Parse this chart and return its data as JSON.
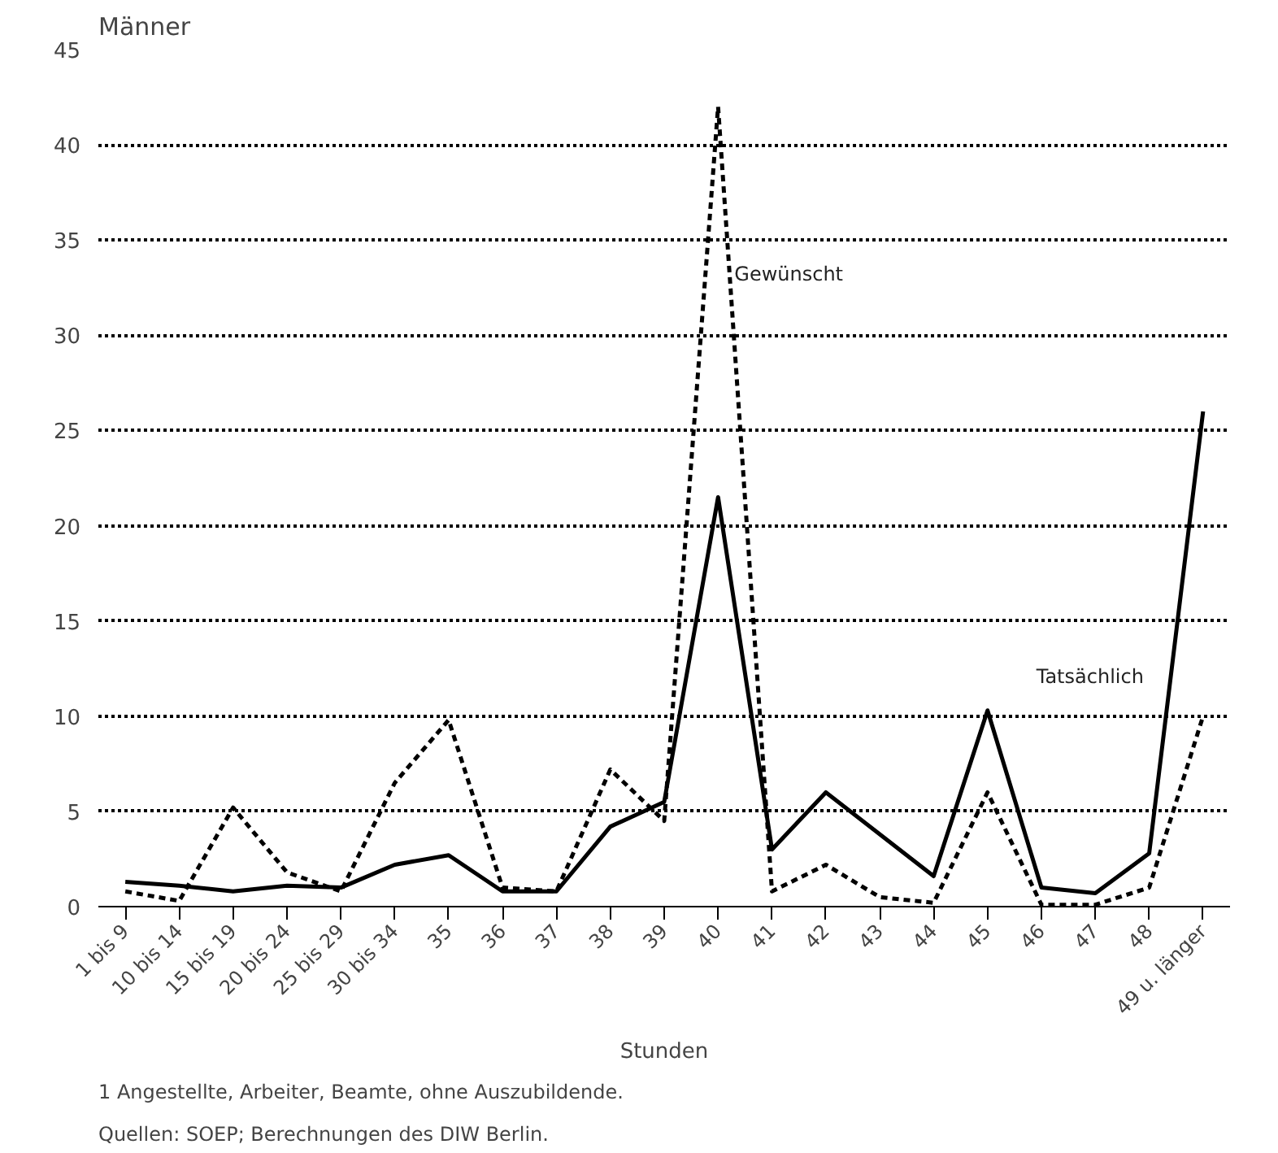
{
  "chart_data": {
    "type": "line",
    "title": "Männer",
    "xlabel": "Stunden",
    "categories": [
      "1 bis 9",
      "10 bis 14",
      "15 bis 19",
      "20 bis 24",
      "25 bis 29",
      "30 bis 34",
      "35",
      "36",
      "37",
      "38",
      "39",
      "40",
      "41",
      "42",
      "43",
      "44",
      "45",
      "46",
      "47",
      "48",
      "49 u. länger"
    ],
    "series": [
      {
        "name": "Tatsächlich",
        "color": "#000000",
        "line_style": "solid",
        "values": [
          1.3,
          1.1,
          0.8,
          1.1,
          1.0,
          2.2,
          2.7,
          0.8,
          0.8,
          4.2,
          5.5,
          21.5,
          3.0,
          6.0,
          3.8,
          1.6,
          10.3,
          1.0,
          0.7,
          2.8,
          26
        ]
      },
      {
        "name": "Gewünscht",
        "color": "#000000",
        "line_style": "dashed",
        "values": [
          0.8,
          0.3,
          5.2,
          1.8,
          0.8,
          6.5,
          9.8,
          1.0,
          0.8,
          7.2,
          4.5,
          42,
          0.8,
          2.2,
          0.5,
          0.2,
          6.0,
          0.1,
          0.1,
          1.0,
          10
        ]
      }
    ],
    "ylim": [
      0,
      45
    ],
    "yticks": [
      0,
      5,
      10,
      15,
      20,
      25,
      30,
      35,
      40,
      45
    ],
    "grid": "y",
    "legend": false,
    "annotations": [
      "1   Angestellte, Arbeiter, Beamte, ohne Auszubildende.",
      "Quellen: SOEP; Berechnungen des DIW Berlin."
    ]
  }
}
